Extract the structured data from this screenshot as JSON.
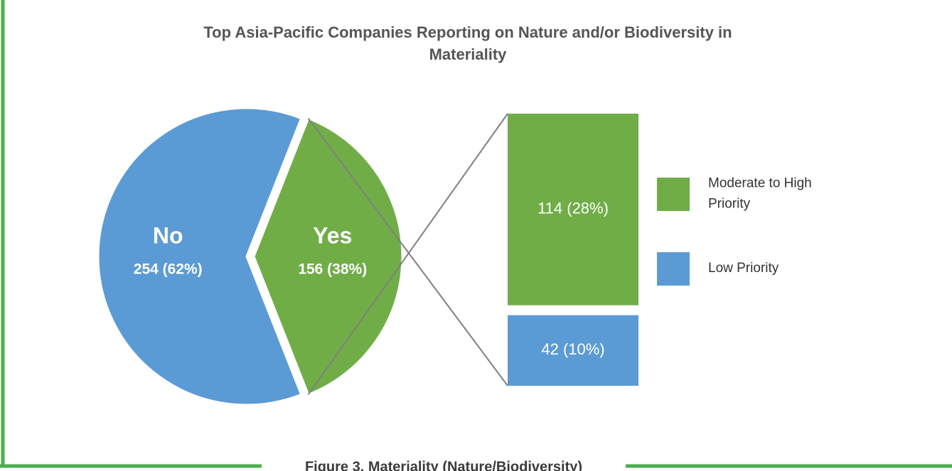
{
  "chart_data": {
    "type": "pie",
    "title": "Top Asia-Pacific Companies Reporting on Nature and/or Biodiversity in Materiality",
    "categories": [
      "No",
      "Yes"
    ],
    "values": [
      254,
      156
    ],
    "value_labels": [
      "254 (62%)",
      "156 (38%)"
    ],
    "colors": [
      "#5b9bd5",
      "#70ad47"
    ],
    "breakdown": {
      "categories": [
        "Moderate to High Priority",
        "Low Priority"
      ],
      "values": [
        114,
        42
      ],
      "value_labels": [
        "114 (28%)",
        "42 (10%)"
      ],
      "colors": [
        "#70ad47",
        "#5b9bd5"
      ]
    },
    "caption": "Figure 3. Materiality (Nature/Biodiversity)"
  }
}
